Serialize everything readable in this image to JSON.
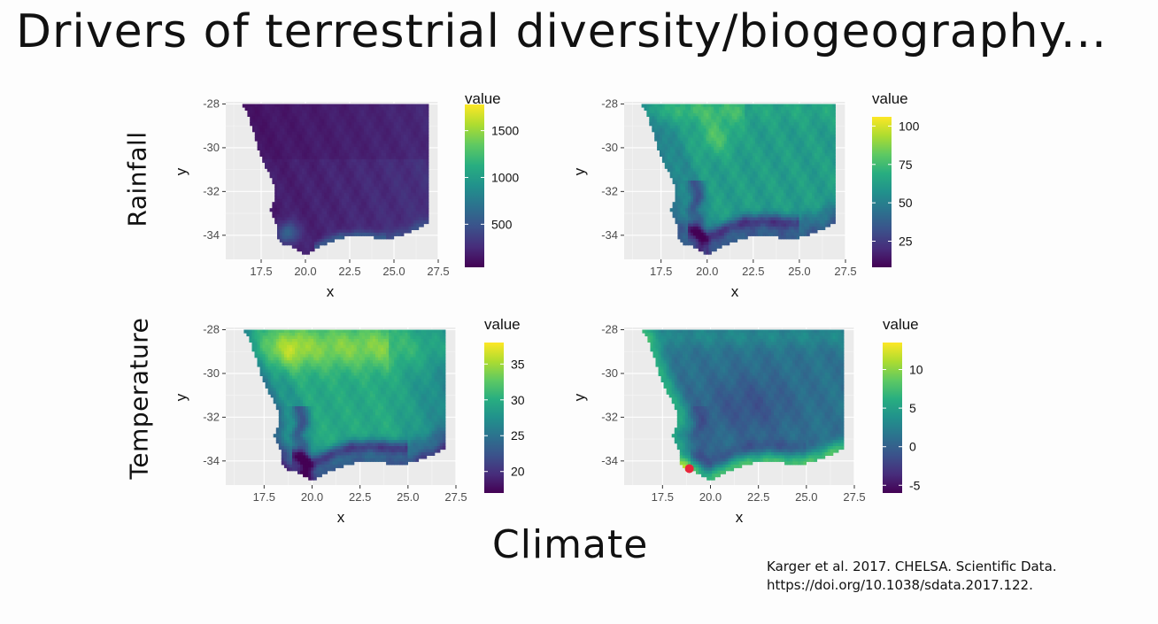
{
  "slide": {
    "title": "Drivers of terrestrial diversity/biogeography...",
    "row_labels": [
      "Rainfall",
      "Temperature"
    ],
    "footer_title": "Climate",
    "citation_line1": "Karger et al. 2017. CHELSA. Scientific Data.",
    "citation_line2": "https://doi.org/10.1038/sdata.2017.122."
  },
  "colors": {
    "viridis": [
      "#440154",
      "#472d7b",
      "#3b528b",
      "#2c728e",
      "#21918c",
      "#28ae80",
      "#5ec962",
      "#addc30",
      "#fde725"
    ],
    "panel_bg": "#ebebeb",
    "grid": "#ffffff",
    "marker": "#e8253c"
  },
  "chart_data": [
    {
      "type": "heatmap",
      "row": "Rainfall",
      "xlabel": "x",
      "ylabel": "y",
      "xlim": [
        15.5,
        27.5
      ],
      "ylim": [
        -35.1,
        -27.9
      ],
      "xticks": [
        "17.5",
        "20.0",
        "22.5",
        "25.0",
        "27.5"
      ],
      "yticks": [
        "-28",
        "-30",
        "-32",
        "-34"
      ],
      "legend_title": "value",
      "legend_range": [
        40,
        1780
      ],
      "legend_ticks": [
        "500",
        "1000",
        "1500"
      ],
      "field": "annual_precip"
    },
    {
      "type": "heatmap",
      "row": "Rainfall",
      "xlabel": "x",
      "ylabel": "y",
      "xlim": [
        15.5,
        27.5
      ],
      "ylim": [
        -35.1,
        -27.9
      ],
      "xticks": [
        "17.5",
        "20.0",
        "22.5",
        "25.0",
        "27.5"
      ],
      "yticks": [
        "-28",
        "-30",
        "-32",
        "-34"
      ],
      "legend_title": "value",
      "legend_range": [
        8,
        106
      ],
      "legend_ticks": [
        "25",
        "50",
        "75",
        "100"
      ],
      "field": "precip_seasonality"
    },
    {
      "type": "heatmap",
      "row": "Temperature",
      "xlabel": "x",
      "ylabel": "y",
      "xlim": [
        15.5,
        27.5
      ],
      "ylim": [
        -35.1,
        -27.9
      ],
      "xticks": [
        "17.5",
        "20.0",
        "22.5",
        "25.0",
        "27.5"
      ],
      "yticks": [
        "-28",
        "-30",
        "-32",
        "-34"
      ],
      "legend_title": "value",
      "legend_range": [
        17,
        38
      ],
      "legend_ticks": [
        "20",
        "25",
        "30",
        "35"
      ],
      "field": "max_temp"
    },
    {
      "type": "heatmap",
      "row": "Temperature",
      "xlabel": "x",
      "ylabel": "y",
      "xlim": [
        15.5,
        27.5
      ],
      "ylim": [
        -35.1,
        -27.9
      ],
      "xticks": [
        "17.5",
        "20.0",
        "22.5",
        "25.0",
        "27.5"
      ],
      "yticks": [
        "-28",
        "-30",
        "-32",
        "-34"
      ],
      "legend_title": "value",
      "legend_range": [
        -6,
        13.5
      ],
      "legend_ticks": [
        "-5",
        "0",
        "5",
        "10"
      ],
      "field": "min_temp",
      "marker": {
        "x": 18.9,
        "y": -34.35
      }
    }
  ]
}
